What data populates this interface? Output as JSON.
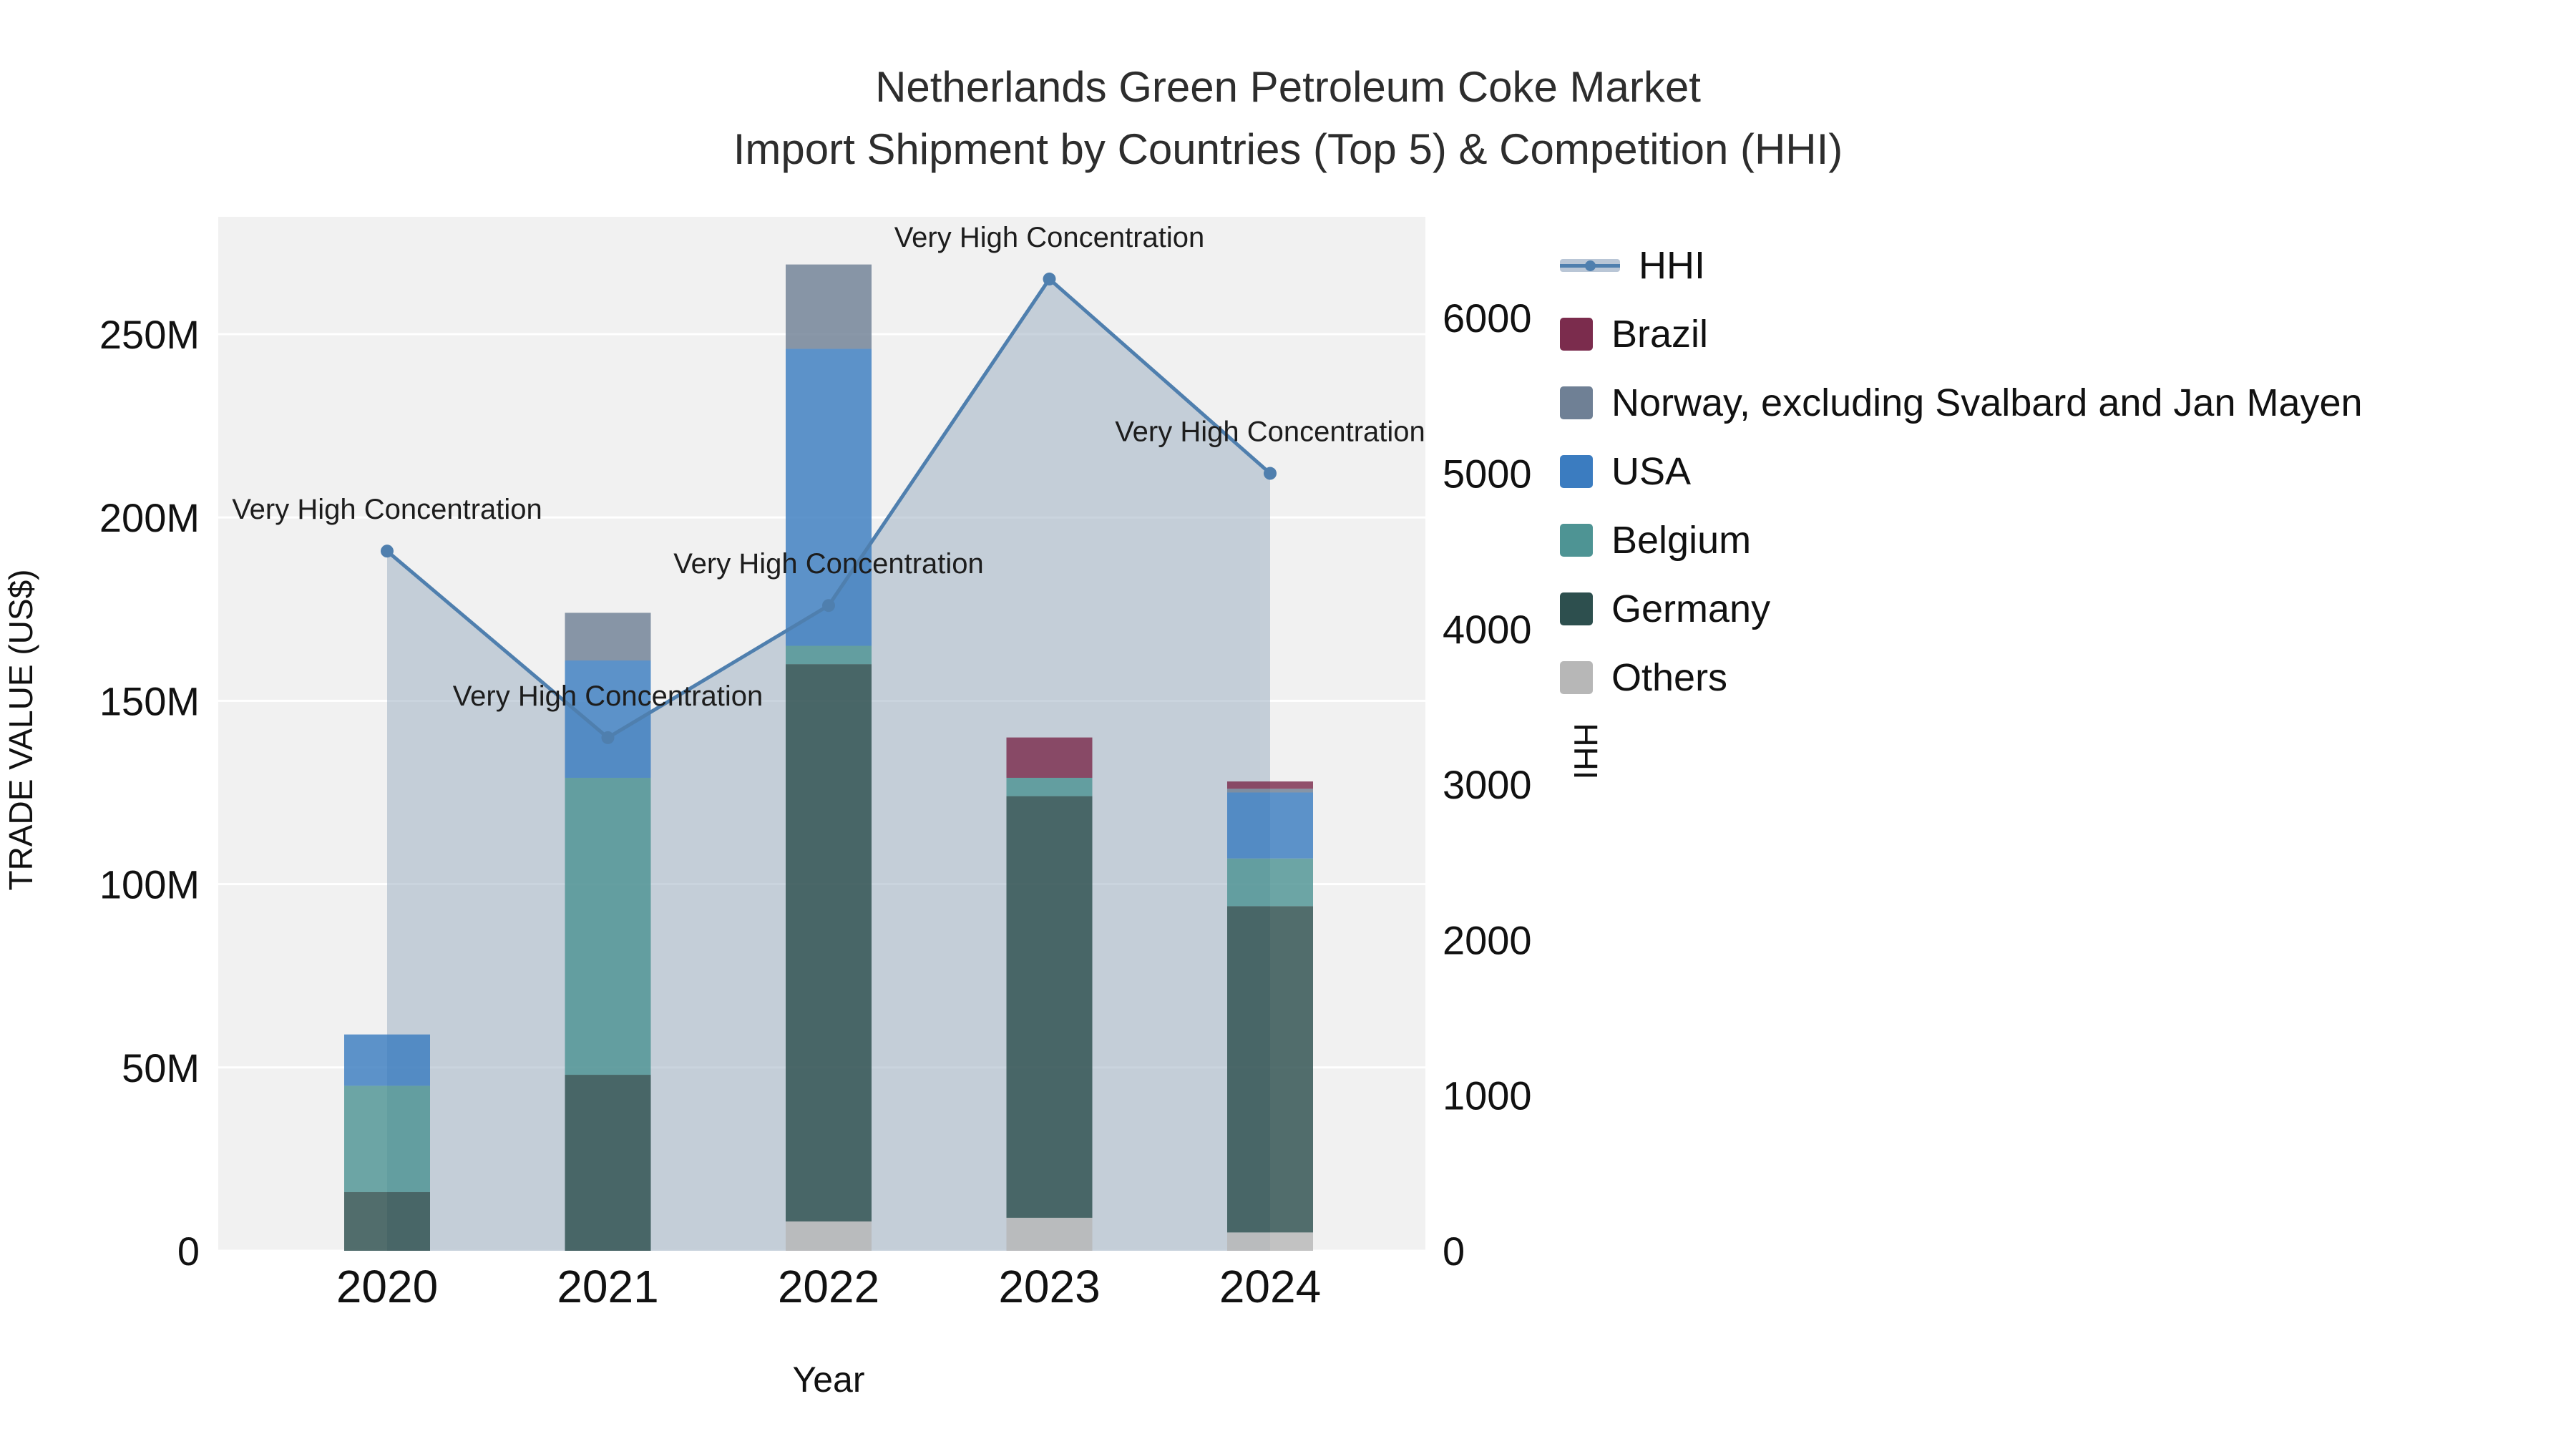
{
  "chart_data": {
    "type": "combo_stacked_bar_line",
    "title": "Netherlands Green Petroleum Coke Market",
    "subtitle": "Import Shipment by Countries (Top 5) & Competition (HHI)",
    "x_title": "Year",
    "y_left_title": "TRADE VALUE (US$)",
    "y_right_title": "HHI",
    "categories": [
      "2020",
      "2021",
      "2022",
      "2023",
      "2024"
    ],
    "bar_unit": "USD millions",
    "bar_series": [
      {
        "name": "Others",
        "color": "#b7b7b7",
        "values": [
          0,
          0,
          8,
          9,
          5
        ]
      },
      {
        "name": "Germany",
        "color": "#2d4f4e",
        "values": [
          16,
          48,
          152,
          115,
          89
        ]
      },
      {
        "name": "Belgium",
        "color": "#4e9494",
        "values": [
          29,
          81,
          5,
          5,
          13
        ]
      },
      {
        "name": "USA",
        "color": "#3b7cc0",
        "values": [
          14,
          32,
          81,
          0,
          18
        ]
      },
      {
        "name": "Norway, excluding Svalbard and Jan Mayen",
        "color": "#6f8095",
        "values": [
          0,
          13,
          23,
          0,
          1
        ]
      },
      {
        "name": "Brazil",
        "color": "#7b2c4d",
        "values": [
          0,
          0,
          0,
          11,
          2
        ]
      }
    ],
    "line_series": {
      "name": "HHI",
      "color": "#4f7fae",
      "area_fill": "#9fb0c3",
      "area_opacity": 0.55,
      "values": [
        4500,
        3300,
        4150,
        6250,
        5000
      ]
    },
    "annotations": [
      "Very High Concentration",
      "Very High Concentration",
      "Very High Concentration",
      "Very High Concentration",
      "Very High Concentration"
    ],
    "y_left": {
      "ticks": [
        0,
        50,
        100,
        150,
        200,
        250
      ],
      "tick_labels": [
        "0",
        "50M",
        "100M",
        "150M",
        "200M",
        "250M"
      ],
      "max": 282
    },
    "y_right": {
      "ticks": [
        0,
        1000,
        2000,
        3000,
        4000,
        5000,
        6000
      ],
      "tick_labels": [
        "0",
        "1000",
        "2000",
        "3000",
        "4000",
        "5000",
        "6000"
      ],
      "max": 6650
    },
    "plot_bg": "#f1f1f1",
    "grid_color": "#ffffff"
  },
  "legend": {
    "items": [
      {
        "label": "HHI",
        "marker": "line-dot",
        "color": "#4f7fae",
        "band_color": "#b9c6d6"
      },
      {
        "label": "Brazil",
        "marker": "square",
        "color": "#7b2c4d"
      },
      {
        "label": "Norway, excluding Svalbard and Jan Mayen",
        "marker": "square",
        "color": "#6f8095"
      },
      {
        "label": "USA",
        "marker": "square",
        "color": "#3b7cc0"
      },
      {
        "label": "Belgium",
        "marker": "square",
        "color": "#4e9494"
      },
      {
        "label": "Germany",
        "marker": "square",
        "color": "#2d4f4e"
      },
      {
        "label": "Others",
        "marker": "square",
        "color": "#b7b7b7"
      }
    ]
  }
}
